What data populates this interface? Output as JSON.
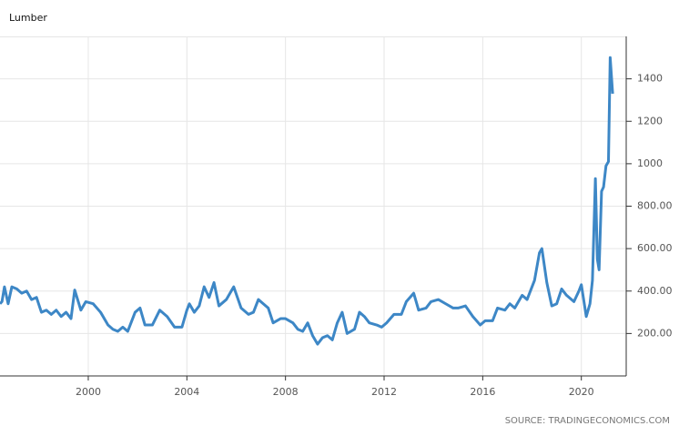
{
  "chart_data": {
    "type": "line",
    "title": "Lumber",
    "source": "SOURCE: TRADINGECONOMICS.COM",
    "color": "#3d87c6",
    "grid": true,
    "x": [
      1996.42,
      1996.5,
      1996.6,
      1996.75,
      1996.9,
      1997.1,
      1997.3,
      1997.5,
      1997.7,
      1997.9,
      1998.1,
      1998.3,
      1998.5,
      1998.7,
      1998.9,
      1999.1,
      1999.3,
      1999.45,
      1999.7,
      1999.9,
      2000.2,
      2000.5,
      2000.8,
      2001.0,
      2001.2,
      2001.4,
      2001.6,
      2001.9,
      2002.1,
      2002.3,
      2002.6,
      2002.9,
      2003.2,
      2003.5,
      2003.8,
      2004.0,
      2004.1,
      2004.3,
      2004.5,
      2004.7,
      2004.9,
      2005.1,
      2005.3,
      2005.6,
      2005.9,
      2006.2,
      2006.5,
      2006.7,
      2006.9,
      2007.1,
      2007.3,
      2007.5,
      2007.8,
      2008.0,
      2008.3,
      2008.5,
      2008.7,
      2008.9,
      2009.1,
      2009.3,
      2009.5,
      2009.7,
      2009.9,
      2010.1,
      2010.3,
      2010.5,
      2010.8,
      2011.0,
      2011.2,
      2011.4,
      2011.7,
      2011.9,
      2012.1,
      2012.4,
      2012.7,
      2012.9,
      2013.2,
      2013.4,
      2013.7,
      2013.9,
      2014.2,
      2014.5,
      2014.8,
      2015.0,
      2015.3,
      2015.6,
      2015.9,
      2016.1,
      2016.4,
      2016.6,
      2016.9,
      2017.1,
      2017.3,
      2017.6,
      2017.8,
      2018.0,
      2018.1,
      2018.3,
      2018.4,
      2018.6,
      2018.8,
      2019.0,
      2019.2,
      2019.4,
      2019.7,
      2019.9,
      2020.0,
      2020.2,
      2020.35,
      2020.45,
      2020.57,
      2020.65,
      2020.72,
      2020.82,
      2020.9,
      2021.0,
      2021.1,
      2021.17,
      2021.27
    ],
    "values": [
      340,
      350,
      420,
      340,
      420,
      410,
      390,
      400,
      360,
      370,
      300,
      310,
      290,
      310,
      280,
      300,
      270,
      405,
      310,
      350,
      340,
      300,
      240,
      220,
      210,
      230,
      210,
      300,
      320,
      240,
      240,
      310,
      280,
      230,
      230,
      310,
      340,
      300,
      330,
      420,
      370,
      440,
      330,
      360,
      420,
      320,
      290,
      300,
      360,
      340,
      320,
      250,
      270,
      270,
      250,
      220,
      210,
      250,
      190,
      150,
      180,
      190,
      170,
      250,
      300,
      200,
      220,
      300,
      280,
      250,
      240,
      230,
      250,
      290,
      290,
      350,
      390,
      310,
      320,
      350,
      360,
      340,
      320,
      320,
      330,
      280,
      240,
      260,
      260,
      320,
      310,
      340,
      320,
      380,
      360,
      420,
      450,
      580,
      600,
      440,
      330,
      340,
      410,
      380,
      350,
      400,
      430,
      280,
      340,
      450,
      930,
      550,
      500,
      870,
      890,
      990,
      1010,
      1500,
      1330
    ],
    "xlim": [
      1996.42,
      2021.82
    ],
    "xticks": [
      2000,
      2004,
      2008,
      2012,
      2016,
      2020
    ],
    "ylim": [
      0,
      1600
    ],
    "yticks": [
      {
        "value": 200,
        "label": "200.00"
      },
      {
        "value": 400,
        "label": "400.00"
      },
      {
        "value": 600,
        "label": "600.00"
      },
      {
        "value": 800,
        "label": "800.00"
      },
      1000,
      1200,
      1400
    ]
  }
}
